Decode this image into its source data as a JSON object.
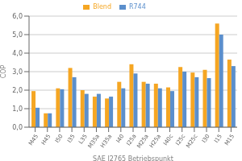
{
  "chart_data": {
    "type": "bar",
    "categories": [
      "M45",
      "H45",
      "I50",
      "I35",
      "L35",
      "M35a",
      "H35a",
      "I40",
      "I25a",
      "M25a",
      "H25a",
      "I40c",
      "I25c",
      "M25c",
      "I30",
      "I15",
      "M15"
    ],
    "series": [
      {
        "name": "Blend",
        "color": "#F5A623",
        "values": [
          1.95,
          0.75,
          2.1,
          3.2,
          2.0,
          1.65,
          1.55,
          2.45,
          3.4,
          2.45,
          2.35,
          2.15,
          3.25,
          2.95,
          3.1,
          5.6,
          3.65
        ]
      },
      {
        "name": "R744",
        "color": "#5B8FCC",
        "values": [
          1.05,
          0.75,
          2.05,
          2.7,
          1.8,
          1.8,
          1.65,
          2.1,
          2.9,
          2.35,
          2.1,
          1.95,
          3.0,
          2.7,
          2.65,
          5.0,
          3.3
        ]
      }
    ],
    "xlabel": "SAE J2765 Betriebspunkt",
    "ylabel": "COP",
    "ylim": [
      0,
      6.0
    ],
    "yticks": [
      {
        "value": 0.0,
        "label": "0,0"
      },
      {
        "value": 1.0,
        "label": "1,0"
      },
      {
        "value": 2.0,
        "label": "2,0"
      },
      {
        "value": 3.0,
        "label": "3,0"
      },
      {
        "value": 4.0,
        "label": "4,0"
      },
      {
        "value": 5.0,
        "label": "5,0"
      },
      {
        "value": 6.0,
        "label": "6,0"
      }
    ],
    "grid": true,
    "legend": "top"
  }
}
